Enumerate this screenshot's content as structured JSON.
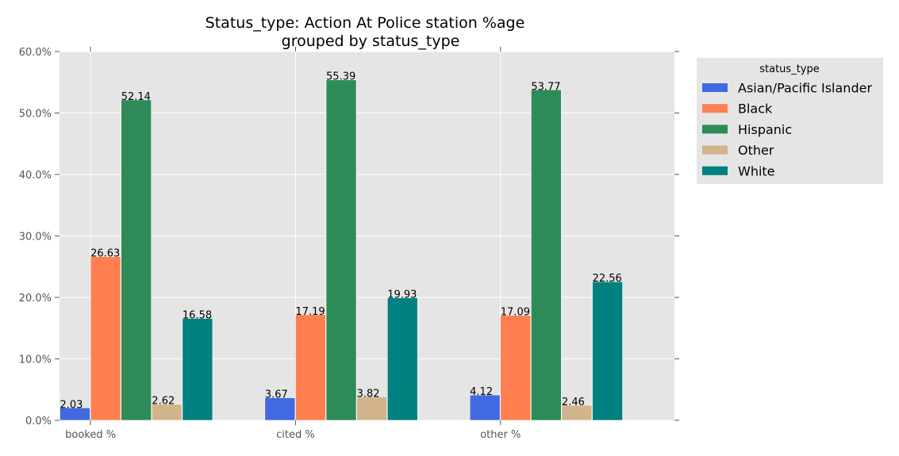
{
  "chart_data": {
    "type": "bar",
    "title_line1": "Status_type: Action At Police station %age",
    "title_line2": "grouped by status_type",
    "xlabel": "",
    "ylabel": "",
    "categories": [
      "booked %",
      "cited %",
      "other %"
    ],
    "ylim": [
      0,
      60
    ],
    "yticks": [
      "0.0%",
      "10.0%",
      "20.0%",
      "30.0%",
      "40.0%",
      "50.0%",
      "60.0%"
    ],
    "grid": true,
    "legend": {
      "title": "status_type",
      "placement": "outside-right"
    },
    "series": [
      {
        "name": "Asian/Pacific Islander",
        "color": "#4169E1",
        "values": [
          2.03,
          3.67,
          4.12
        ],
        "labels": [
          "2.03",
          "3.67",
          "4.12"
        ]
      },
      {
        "name": "Black",
        "color": "#FF7F50",
        "values": [
          26.63,
          17.19,
          17.09
        ],
        "labels": [
          "26.63",
          "17.19",
          "17.09"
        ]
      },
      {
        "name": "Hispanic",
        "color": "#2E8B57",
        "values": [
          52.14,
          55.39,
          53.77
        ],
        "labels": [
          "52.14",
          "55.39",
          "53.77"
        ]
      },
      {
        "name": "Other",
        "color": "#D2B48C",
        "values": [
          2.62,
          3.82,
          2.46
        ],
        "labels": [
          "2.62",
          "3.82",
          "2.46"
        ]
      },
      {
        "name": "White",
        "color": "#008080",
        "values": [
          16.58,
          19.93,
          22.56
        ],
        "labels": [
          "16.58",
          "19.93",
          "22.56"
        ]
      }
    ]
  }
}
